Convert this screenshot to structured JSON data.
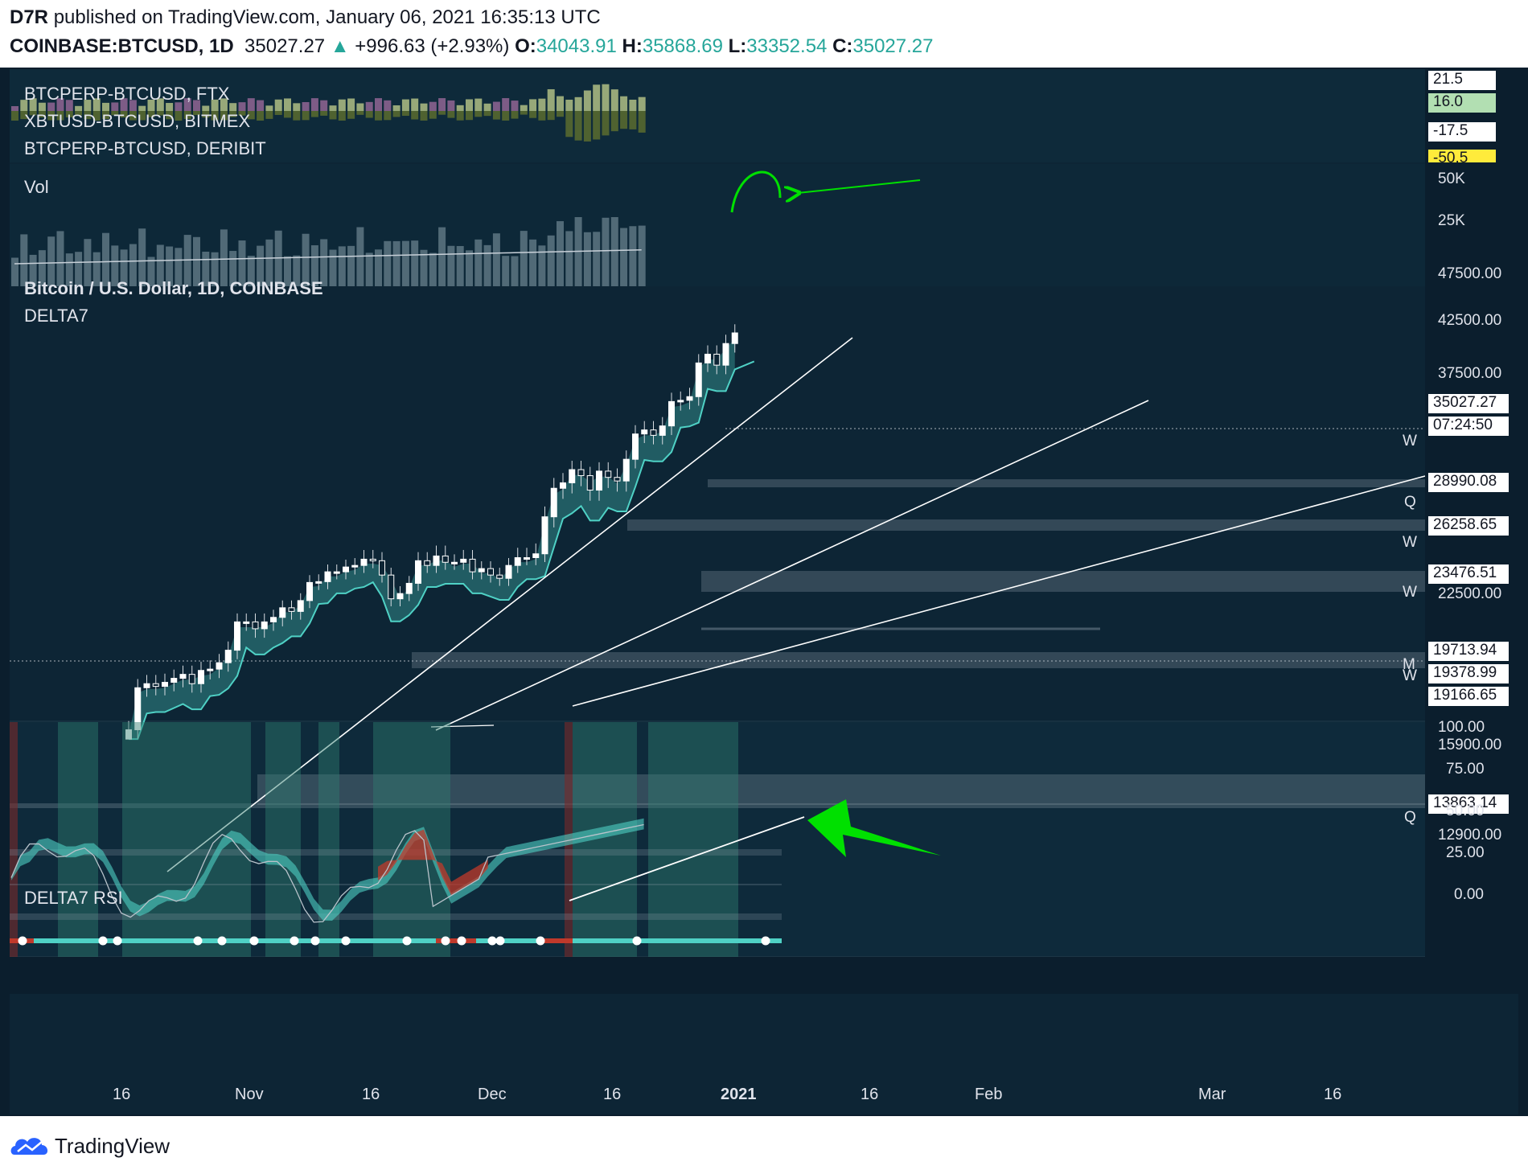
{
  "header": {
    "publisher": "D7R",
    "published_on": "published on TradingView.com, January 06, 2021 16:35:13 UTC",
    "symbol": "COINBASE:BTCUSD, 1D",
    "last": "35027.27",
    "change": "+996.63 (+2.93%)",
    "o_label": "O:",
    "o_value": "34043.91",
    "h_label": "H:",
    "h_value": "35868.69",
    "l_label": "L:",
    "l_value": "33352.54",
    "c_label": "C:",
    "c_value": "35027.27"
  },
  "panels": {
    "funding": {
      "labels": [
        "BTCPERP-BTCUSD, FTX",
        "XBTUSD-BTCUSD, BITMEX",
        "BTCPERP-BTCUSD, DERIBIT"
      ],
      "scale": [
        "21.5",
        "16.0",
        "-17.5",
        "-50.5"
      ]
    },
    "volume": {
      "label": "Vol",
      "scale": [
        "50K",
        "25K"
      ]
    },
    "main": {
      "title": "Bitcoin / U.S. Dollar, 1D, COINBASE",
      "indicator": "DELTA7",
      "scale": [
        "47500.00",
        "42500.00",
        "37500.00",
        "22500.00",
        "15900.00",
        "12900.00"
      ],
      "price_tags": [
        "35027.27",
        "07:24:50",
        "28990.08",
        "26258.65",
        "23476.51",
        "19713.94",
        "19378.99",
        "19166.65",
        "13863.14"
      ],
      "level_letters": [
        "W",
        "Q",
        "W",
        "W",
        "M",
        "W",
        "Q"
      ]
    },
    "rsi": {
      "label": "DELTA7 RSI",
      "scale": [
        "100.00",
        "75.00",
        "50.00",
        "25.00",
        "0.00"
      ]
    }
  },
  "x_axis": [
    "16",
    "Nov",
    "16",
    "Dec",
    "16",
    "2021",
    "16",
    "Feb",
    "Mar",
    "16"
  ],
  "footer": {
    "brand": "TradingView"
  },
  "colors": {
    "up": "#26a69a",
    "band": "#4fd1c5",
    "down": "#c0392b",
    "annotation": "#00e000",
    "background": "#0d2535"
  },
  "chart_data": {
    "type": "candlestick",
    "symbol": "COINBASE:BTCUSD",
    "interval": "1D",
    "ylim": [
      12000,
      47500
    ],
    "trend_lines": 3,
    "closes": [
      11500,
      12950,
      13100,
      13000,
      13150,
      13300,
      13450,
      13100,
      13600,
      13650,
      13900,
      14400,
      15600,
      15600,
      15300,
      15600,
      15800,
      16300,
      16100,
      16700,
      17750,
      17800,
      18400,
      18400,
      18700,
      18800,
      19200,
      19100,
      18200,
      16800,
      17100,
      17700,
      19100,
      18800,
      19400,
      19000,
      19000,
      19200,
      18400,
      18600,
      18200,
      18000,
      18800,
      19300,
      19300,
      19500,
      21300,
      22800,
      23100,
      23900,
      23500,
      22700,
      23800,
      23400,
      23200,
      24600,
      26400,
      26700,
      26300,
      27000,
      28900,
      29000,
      29300,
      32200,
      33000,
      32000,
      34000,
      35027
    ]
  }
}
